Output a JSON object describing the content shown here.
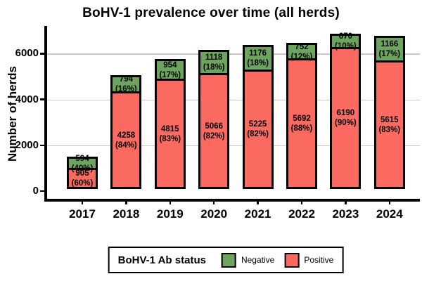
{
  "title": "BoHV-1 prevalence over time (all herds)",
  "y_axis": {
    "label": "Number of herds",
    "ticks": [
      0,
      2000,
      4000,
      6000
    ]
  },
  "x_axis": {
    "ticks": [
      "2017",
      "2018",
      "2019",
      "2020",
      "2021",
      "2022",
      "2023",
      "2024"
    ]
  },
  "legend": {
    "title": "BoHV-1 Ab status",
    "items": [
      {
        "label": "Negative",
        "color": "#6CA45E"
      },
      {
        "label": "Positive",
        "color": "#FA6A60"
      }
    ]
  },
  "colors": {
    "negative": "#6CA45E",
    "positive": "#FA6A60",
    "bar_border": "#000000",
    "gridline": "#C8C8C8",
    "axis": "#000000",
    "text": "#000000"
  },
  "chart_data": {
    "type": "bar",
    "stacked": true,
    "title": "BoHV-1 prevalence over time (all herds)",
    "xlabel": "",
    "ylabel": "Number of herds",
    "categories": [
      "2017",
      "2018",
      "2019",
      "2020",
      "2021",
      "2022",
      "2023",
      "2024"
    ],
    "series": [
      {
        "name": "Negative",
        "color": "#6CA45E",
        "values": [
          594,
          794,
          954,
          1118,
          1176,
          752,
          670,
          1166
        ],
        "percent_labels": [
          "(40%)",
          "(16%)",
          "(17%)",
          "(18%)",
          "(18%)",
          "(12%)",
          "(10%)",
          "(17%)"
        ]
      },
      {
        "name": "Positive",
        "color": "#FA6A60",
        "values": [
          905,
          4258,
          4815,
          5066,
          5225,
          5692,
          6190,
          5615
        ],
        "percent_labels": [
          "(60%)",
          "(84%)",
          "(83%)",
          "(82%)",
          "(82%)",
          "(88%)",
          "(90%)",
          "(83%)"
        ]
      }
    ],
    "ylim": [
      0,
      7000
    ],
    "gridlines": [
      2000,
      4000,
      6000
    ],
    "grid": true,
    "legend_position": "bottom"
  }
}
